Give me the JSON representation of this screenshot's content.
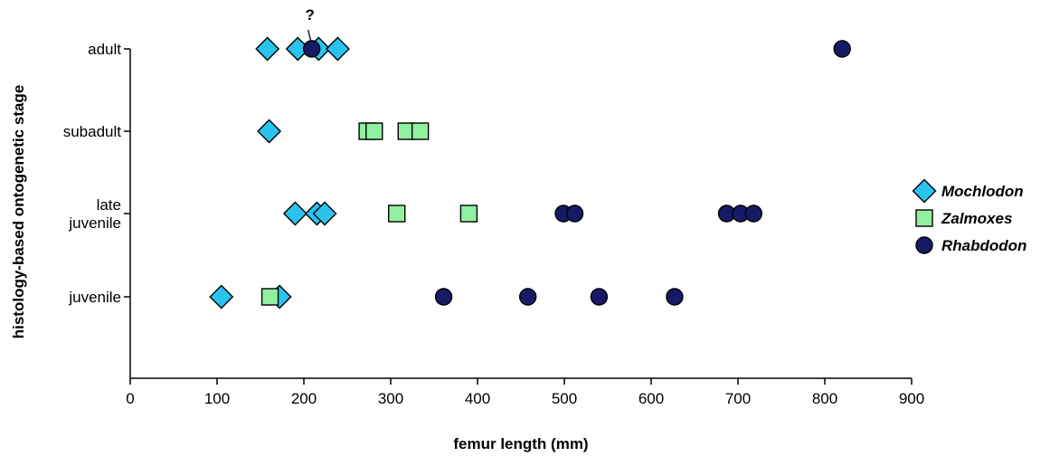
{
  "chart_data": {
    "type": "scatter",
    "xlabel": "femur length (mm)",
    "ylabel": "histology-based ontogenetic stage",
    "xlim": [
      0,
      900
    ],
    "x_ticks": [
      "0",
      "100",
      "200",
      "300",
      "400",
      "500",
      "600",
      "700",
      "800",
      "900"
    ],
    "y_categories": [
      {
        "lines": [
          "juvenile"
        ]
      },
      {
        "lines": [
          "late",
          "juvenile"
        ]
      },
      {
        "lines": [
          "subadult"
        ]
      },
      {
        "lines": [
          "adult"
        ]
      }
    ],
    "grid": false,
    "legend_position": "right",
    "series": [
      {
        "name": "Mochlodon",
        "marker": "diamond",
        "color": "#29c3ee",
        "points": [
          {
            "x": 158,
            "y": "adult"
          },
          {
            "x": 193,
            "y": "adult"
          },
          {
            "x": 217,
            "y": "adult"
          },
          {
            "x": 239,
            "y": "adult"
          },
          {
            "x": 160,
            "y": "subadult"
          },
          {
            "x": 190,
            "y": "late juvenile"
          },
          {
            "x": 215,
            "y": "late juvenile"
          },
          {
            "x": 224,
            "y": "late juvenile"
          },
          {
            "x": 105,
            "y": "juvenile"
          },
          {
            "x": 172,
            "y": "juvenile"
          }
        ]
      },
      {
        "name": "Zalmoxes",
        "marker": "square",
        "color": "#90f0a0",
        "points": [
          {
            "x": 273,
            "y": "subadult"
          },
          {
            "x": 281,
            "y": "subadult"
          },
          {
            "x": 318,
            "y": "subadult"
          },
          {
            "x": 334,
            "y": "subadult"
          },
          {
            "x": 307,
            "y": "late juvenile"
          },
          {
            "x": 390,
            "y": "late juvenile"
          },
          {
            "x": 161,
            "y": "juvenile"
          }
        ]
      },
      {
        "name": "Rhabdodon",
        "marker": "circle",
        "color": "#161a66",
        "points": [
          {
            "x": 209,
            "y": "adult"
          },
          {
            "x": 820,
            "y": "adult"
          },
          {
            "x": 499,
            "y": "late juvenile"
          },
          {
            "x": 512,
            "y": "late juvenile"
          },
          {
            "x": 687,
            "y": "late juvenile"
          },
          {
            "x": 703,
            "y": "late juvenile"
          },
          {
            "x": 718,
            "y": "late juvenile"
          },
          {
            "x": 361,
            "y": "juvenile"
          },
          {
            "x": 458,
            "y": "juvenile"
          },
          {
            "x": 540,
            "y": "juvenile"
          },
          {
            "x": 627,
            "y": "juvenile"
          }
        ]
      }
    ],
    "annotations": [
      {
        "text": "?",
        "x": 209,
        "y": "adult"
      }
    ]
  }
}
